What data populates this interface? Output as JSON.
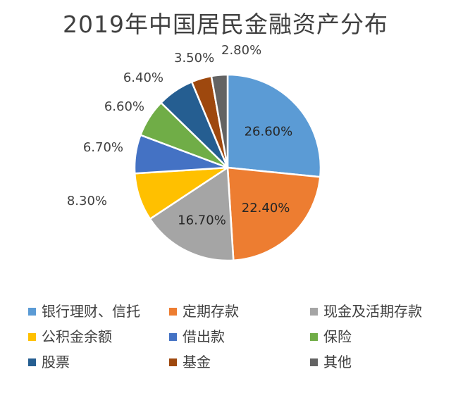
{
  "chart_data": {
    "type": "pie",
    "title": "2019年中国居民金融资产分布",
    "categories": [
      "银行理财、信托",
      "定期存款",
      "现金及活期存款",
      "公积金余额",
      "借出款",
      "保险",
      "股票",
      "基金",
      "其他"
    ],
    "values": [
      26.6,
      22.4,
      16.7,
      8.3,
      6.7,
      6.6,
      6.4,
      3.5,
      2.8
    ],
    "data_labels": [
      "26.60%",
      "22.40%",
      "16.70%",
      "8.30%",
      "6.70%",
      "6.60%",
      "6.40%",
      "3.50%",
      "2.80%"
    ],
    "colors": [
      "#5B9BD5",
      "#ED7D31",
      "#A5A5A5",
      "#FFC000",
      "#4472C4",
      "#70AD47",
      "#255E91",
      "#9E480E",
      "#636363"
    ],
    "legend_position": "bottom",
    "start_angle": "12 o'clock",
    "direction": "clockwise"
  }
}
